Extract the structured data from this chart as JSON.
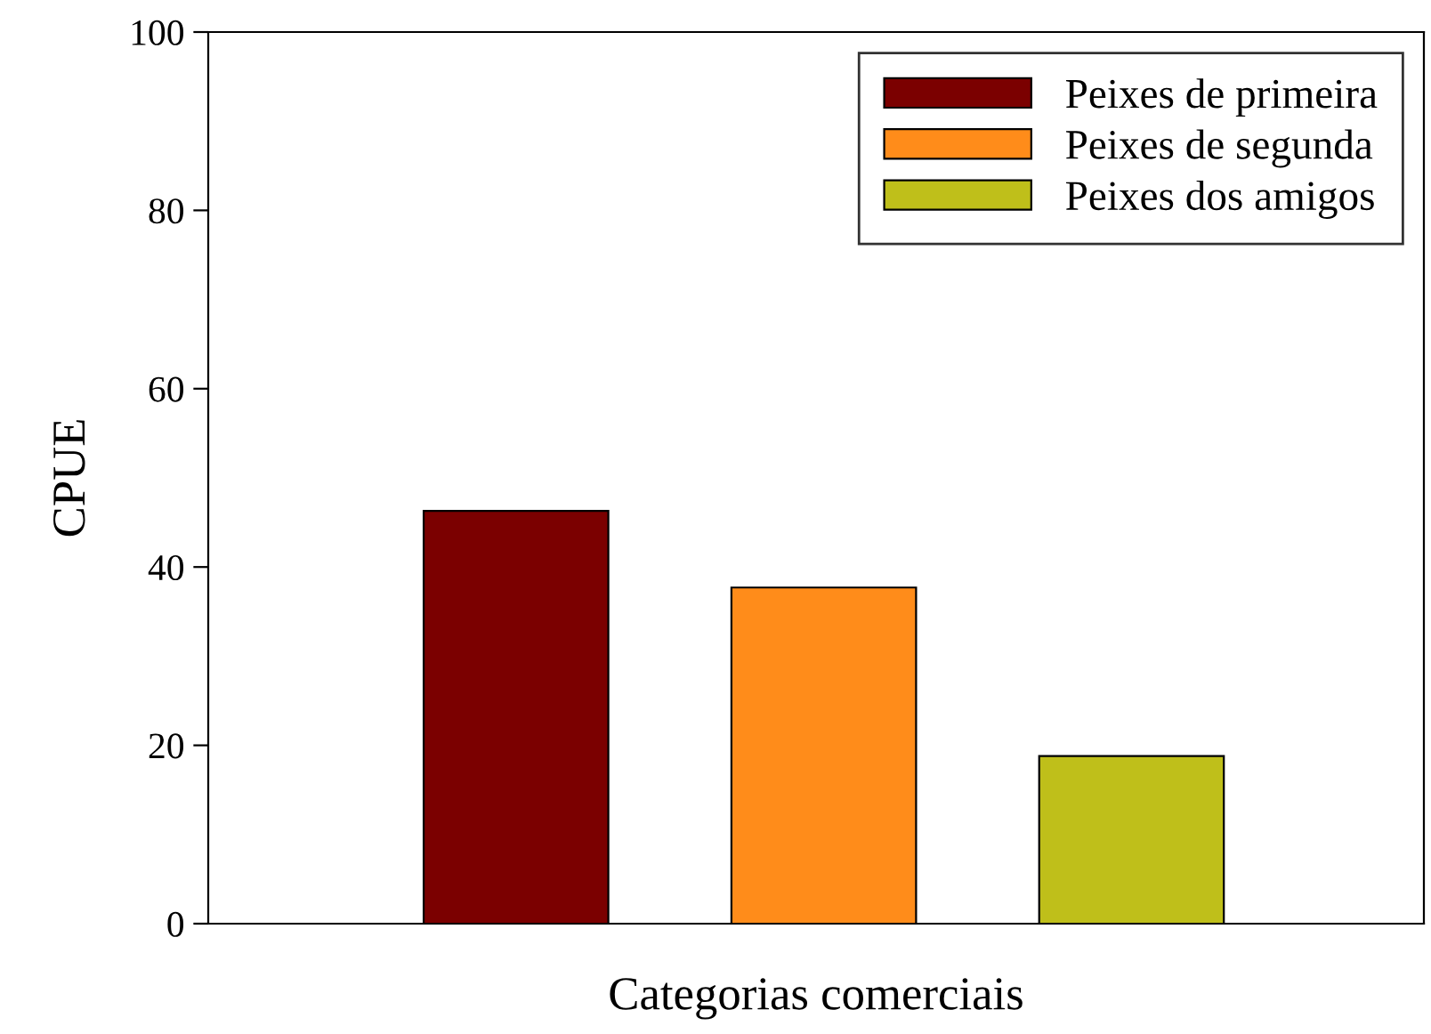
{
  "chart_data": {
    "type": "bar",
    "xlabel": "Categorias comerciais",
    "ylabel": "CPUE",
    "categories": [
      null,
      null,
      null
    ],
    "series": [
      {
        "name": "Peixes de primeira",
        "color": "#7b0000",
        "values": [
          46.3,
          null,
          null
        ]
      },
      {
        "name": "Peixes de segunda",
        "color": "#ff8c1a",
        "values": [
          null,
          37.7,
          null
        ]
      },
      {
        "name": "Peixes dos amigos",
        "color": "#bfbf1a",
        "values": [
          null,
          null,
          18.8
        ]
      }
    ],
    "ylim": [
      0,
      100
    ],
    "yticks": [
      0,
      20,
      40,
      60,
      80,
      100
    ],
    "grid": false,
    "legend": "top right"
  }
}
